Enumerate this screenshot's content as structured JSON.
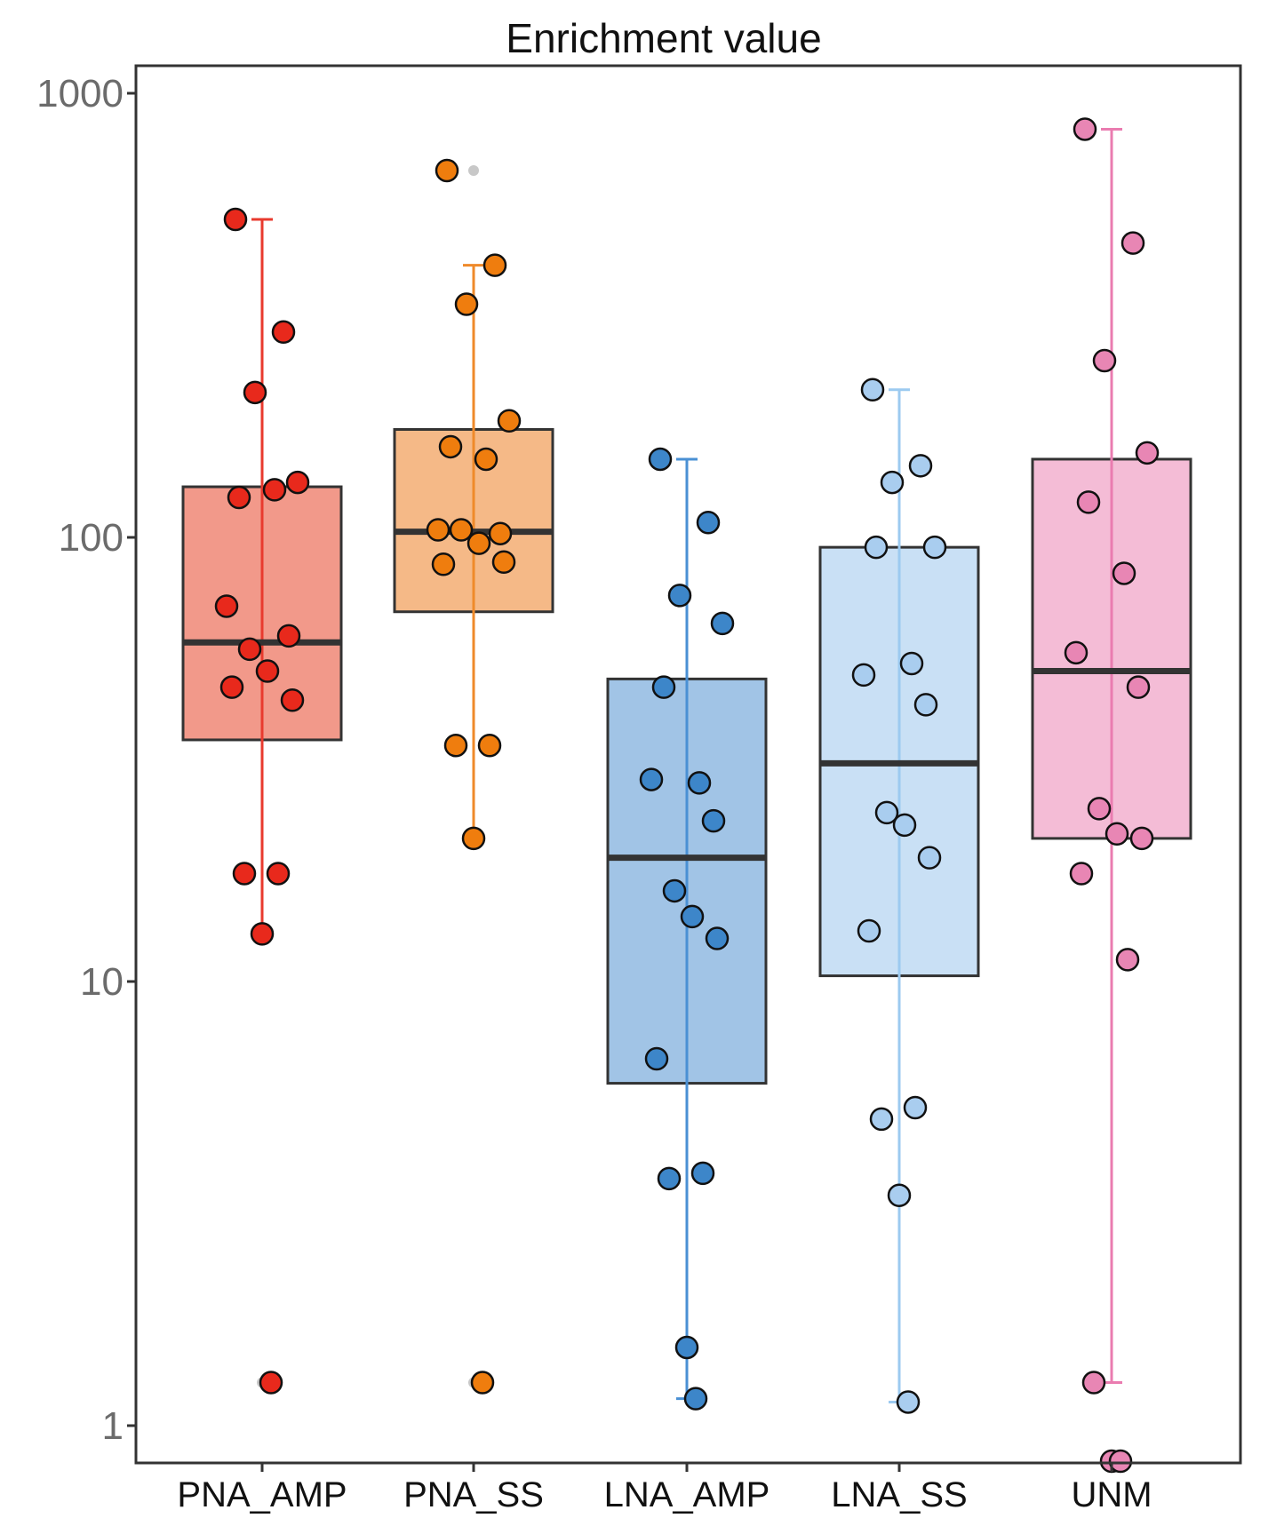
{
  "chart_data": {
    "type": "box",
    "title": "Enrichment value",
    "xlabel": "",
    "ylabel": "",
    "yscale": "log10",
    "ylim": [
      0.8,
      1100
    ],
    "yticks": [
      1,
      10,
      100,
      1000
    ],
    "ytick_labels": [
      "1",
      "10",
      "100",
      "1000"
    ],
    "grid": false,
    "legend": "none",
    "categories": [
      "PNA_AMP",
      "PNA_SS",
      "LNA_AMP",
      "LNA_SS",
      "UNM"
    ],
    "series": [
      {
        "name": "PNA_AMP",
        "fill": "#f2998a",
        "accent": "#e8291c",
        "whisker_color": "#e83a2e",
        "q1": 35,
        "median": 58,
        "q3": 130,
        "whisker_low": 13,
        "whisker_high": 520,
        "outliers": [
          1.25
        ],
        "points": [
          520,
          290,
          212,
          133,
          123,
          128,
          70,
          60,
          56,
          50,
          43,
          46,
          17.5,
          17.5,
          12.8,
          1.25
        ]
      },
      {
        "name": "PNA_SS",
        "fill": "#f5b987",
        "accent": "#ef7d0e",
        "whisker_color": "#ef8a2a",
        "q1": 68,
        "median": 103,
        "q3": 175,
        "whisker_low": 21,
        "whisker_high": 410,
        "outliers": [
          670,
          1.25
        ],
        "points": [
          670,
          410,
          335,
          183,
          160,
          150,
          104,
          102,
          104,
          97,
          88,
          87,
          34,
          34,
          21,
          1.25
        ]
      },
      {
        "name": "LNA_AMP",
        "fill": "#a1c4e6",
        "accent": "#3d86c9",
        "whisker_color": "#4a90d4",
        "q1": 5.9,
        "median": 19,
        "q3": 48,
        "whisker_low": 1.15,
        "whisker_high": 150,
        "outliers": [],
        "points": [
          150,
          108,
          74,
          64,
          46,
          28,
          28.5,
          23,
          16,
          14,
          12.5,
          6.7,
          3.7,
          3.6,
          1.5,
          1.15
        ]
      },
      {
        "name": "LNA_SS",
        "fill": "#c9e0f5",
        "accent": "#a9cdef",
        "whisker_color": "#9ccaf0",
        "q1": 10.3,
        "median": 31,
        "q3": 95,
        "whisker_low": 1.13,
        "whisker_high": 215,
        "outliers": [],
        "points": [
          215,
          145,
          133,
          95,
          95,
          52,
          49,
          42,
          24,
          22.5,
          19,
          13,
          5.2,
          4.9,
          3.3,
          1.13
        ]
      },
      {
        "name": "UNM",
        "fill": "#f4bcd6",
        "accent": "#e886b4",
        "whisker_color": "#ea7cb0",
        "q1": 21,
        "median": 50,
        "q3": 150,
        "whisker_low": 1.25,
        "whisker_high": 830,
        "outliers": [
          0.8,
          0.8
        ],
        "points": [
          830,
          460,
          250,
          155,
          120,
          83,
          55,
          46,
          24.5,
          21.5,
          21,
          17.5,
          11.2,
          1.25,
          0.8,
          0.8
        ]
      }
    ]
  }
}
